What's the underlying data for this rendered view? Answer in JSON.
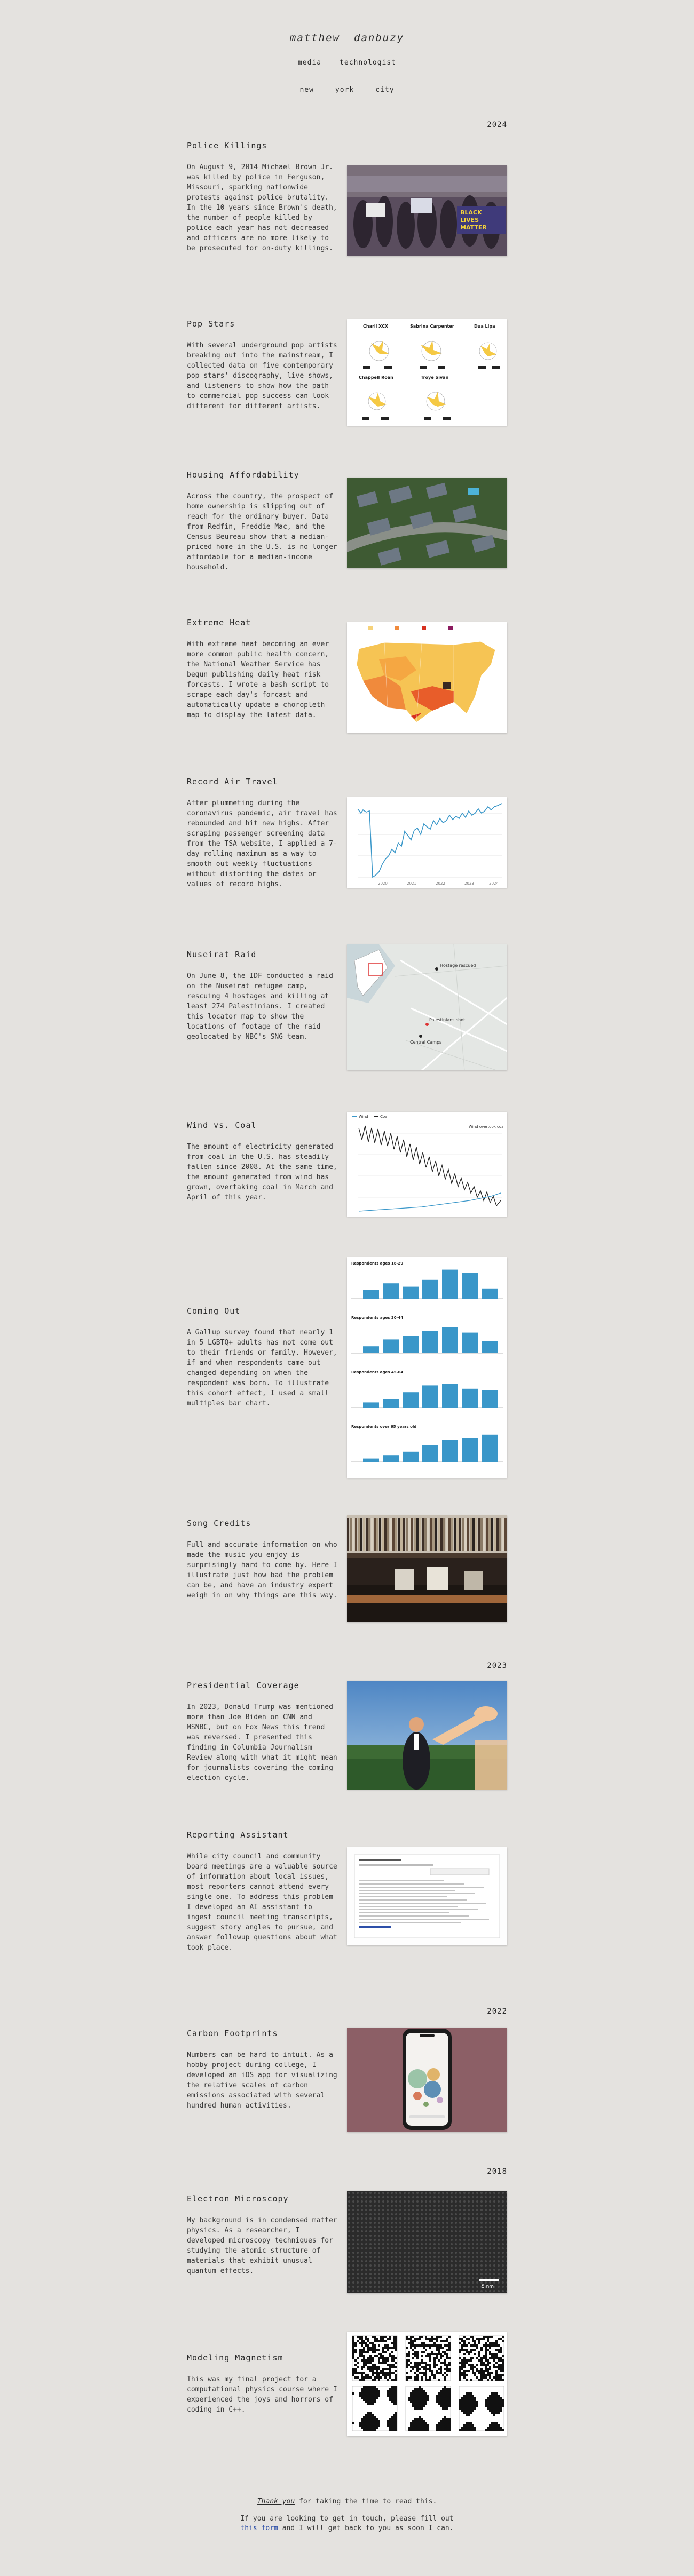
{
  "header": {
    "name_first": "matthew",
    "name_last": "danbuzy",
    "tags": [
      "media",
      "technologist"
    ],
    "location": [
      "new",
      "york",
      "city"
    ]
  },
  "years": [
    "2024",
    "2023",
    "2022",
    "2018"
  ],
  "projects": [
    {
      "title": "Police Killings",
      "desc": "On August 9, 2014 Michael Brown Jr. was killed by police in Ferguson, Missouri, sparking nationwide protests against police brutality. In the 10 years since Brown's death, the number of people killed by police each year has not decreased and officers are no more likely to be prosecuted for on-duty killings.",
      "thumb_text": [
        "BLACK",
        "LIVES",
        "MATTER"
      ]
    },
    {
      "title": "Pop Stars",
      "desc": "With several underground pop artists breaking out into the mainstream, I collected data on five contemporary pop stars' discography, live shows, and listeners to show how the path to commercial pop success can look different for different artists.",
      "thumb_text": [
        "Charli XCX",
        "Sabrina Carpenter",
        "Dua Lipa",
        "Chappell Roan",
        "Troye Sivan"
      ]
    },
    {
      "title": "Housing Affordability",
      "desc": "Across the country, the prospect of home ownership is slipping out of reach for the ordinary buyer. Data from Redfin, Freddie Mac, and the Census Beureau show that a median-priced home in the U.S. is no longer affordable for a median-income household."
    },
    {
      "title": "Extreme Heat",
      "desc": "With extreme heat becoming an ever more common public health concern, the National Weather Service has begun publishing daily heat risk forcasts. I wrote a bash script to scrape each day's forcast and automatically update a choropleth map to display the latest data."
    },
    {
      "title": "Record Air Travel",
      "desc": "After plummeting during the coronavirus pandemic, air travel has rebounded and hit new highs. After scraping passenger screening data from the TSA website, I applied a 7-day rolling maximum as a way to smooth out weekly fluctuations without distorting the dates or values of record highs.",
      "thumb_text": [
        "2020",
        "2021",
        "2022",
        "2023",
        "2024"
      ]
    },
    {
      "title": "Nuseirat Raid",
      "desc": "On June 8, the IDF conducted a raid on the Nuseirat refugee camp, rescuing 4 hostages and killing at least 274 Palestinians. I created this locator map to show the locations of footage of the raid geolocated by NBC's SNG team.",
      "thumb_text": [
        "Hostage rescued",
        "Palestinians shot",
        "Central Camps"
      ]
    },
    {
      "title": "Wind vs. Coal",
      "desc": "The amount of electricity generated from coal in the U.S. has steadily fallen since 2008. At the same time, the amount generated from wind has grown, overtaking coal in March and April of this year.",
      "thumb_text": [
        "Wind",
        "Coal",
        "Wind overtook coal"
      ]
    },
    {
      "title": "Coming Out",
      "desc": "A Gallup survey found that nearly 1 in 5 LGBTQ+ adults has not come out to their friends or family. However, if and when respondents came out changed depending on when the respondent was born. To illustrate this cohort effect, I used a small multiples bar chart.",
      "thumb_text": [
        "Respondents ages 18-29",
        "Respondents ages 30-44",
        "Respondents ages 45-64",
        "Respondents over 65 years old"
      ]
    },
    {
      "title": "Song Credits",
      "desc": "Full and accurate information on who made the music you enjoy is surprisingly hard to come by. Here I illustrate just how bad the problem can be, and have an industry expert weigh in on why things are this way."
    },
    {
      "title": "Presidential Coverage",
      "desc": "In 2023, Donald Trump was mentioned more than Joe Biden on CNN and MSNBC, but on Fox News this trend was reversed. I presented this finding in Columbia Journalism Review along with what it might mean for journalists covering the coming election cycle."
    },
    {
      "title": "Reporting Assistant",
      "desc": "While city council and community board meetings are a valuable source of information about local issues, most reporters cannot attend every single one. To address this problem I developed an AI assistant to ingest council meeting transcripts, suggest story angles to pursue, and answer followup questions about what took place."
    },
    {
      "title": "Carbon Footprints",
      "desc": "Numbers can be hard to intuit. As a hobby project during college, I developed an iOS app for visualizing the relative scales of carbon emissions associated with several hundred human activities."
    },
    {
      "title": "Electron Microscopy",
      "desc": "My background is in condensed matter physics. As a researcher, I developed microscopy techniques for studying the atomic structure of materials that exhibit unusual quantum effects.",
      "thumb_text": [
        "5 nm"
      ]
    },
    {
      "title": "Modeling Magnetism",
      "desc": "This was my final project for a computational physics course where I experienced the joys and horrors of coding in C++."
    }
  ],
  "footer": {
    "thanks_link": "Thank you",
    "thanks_rest": " for taking the time to read this.",
    "contact_before": "If you are looking to get in touch, please fill out ",
    "contact_link": "this form",
    "contact_after": " and I will get back to you as soon I can."
  },
  "colors": {
    "background": "#e4e2df",
    "text": "#2b2b2b",
    "link": "#2d4fa8",
    "bar": "#3a97c9"
  }
}
